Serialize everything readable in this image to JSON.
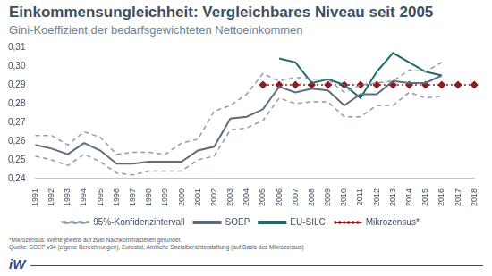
{
  "chart_data": {
    "type": "line",
    "title": "Einkommensungleichheit: Vergleichbares Niveau seit 2005",
    "subtitle": "Gini-Koeffizient der bedarfsgewichteten Nettoeinkommen",
    "notes": [
      "*Mikrozensus: Werte jeweils auf zwei Nachkommastellen gerundet.",
      "Quelle: SOEP v34 (eigene Berechnungen), Eurostat, Amtliche Sozialberichterstattung (auf Basis des Mikrozensus)"
    ],
    "logo": "iW",
    "categories": [
      "1991",
      "1992",
      "1993",
      "1994",
      "1995",
      "1996",
      "1997",
      "1998",
      "1999",
      "2000",
      "2001",
      "2002",
      "2003",
      "2004",
      "2005",
      "2006",
      "2007",
      "2008",
      "2009",
      "2010",
      "2011",
      "2012",
      "2013",
      "2014",
      "2015",
      "2016",
      "2017",
      "2018"
    ],
    "series": [
      {
        "name": "95%-Konfidenzintervall",
        "color": "#8d9bab",
        "line_style": "dashed",
        "upper": [
          0.263,
          0.263,
          0.258,
          0.265,
          0.262,
          0.253,
          0.254,
          0.254,
          0.253,
          0.259,
          0.261,
          0.276,
          0.279,
          0.285,
          0.296,
          0.292,
          0.294,
          0.293,
          0.293,
          0.286,
          0.29,
          0.291,
          0.292,
          0.298,
          0.297,
          0.302,
          null,
          null
        ],
        "lower": [
          0.252,
          0.25,
          0.247,
          0.253,
          0.249,
          0.243,
          0.242,
          0.244,
          0.244,
          0.244,
          0.25,
          0.252,
          0.266,
          0.267,
          0.271,
          0.283,
          0.28,
          0.281,
          0.281,
          0.273,
          0.273,
          0.279,
          0.279,
          0.286,
          0.283,
          0.284,
          null,
          null
        ]
      },
      {
        "name": "SOEP",
        "color": "#5c6d7e",
        "line_style": "solid",
        "values": [
          0.258,
          0.256,
          0.253,
          0.259,
          0.255,
          0.248,
          0.248,
          0.249,
          0.249,
          0.249,
          0.255,
          0.257,
          0.272,
          0.273,
          0.277,
          0.289,
          0.286,
          0.288,
          0.287,
          0.279,
          0.285,
          0.285,
          0.292,
          0.291,
          0.291,
          0.295,
          null,
          null
        ]
      },
      {
        "name": "EU-SILC",
        "color": "#1e6b69",
        "line_style": "solid",
        "values": [
          null,
          null,
          null,
          null,
          null,
          null,
          null,
          null,
          null,
          null,
          null,
          null,
          null,
          null,
          null,
          0.304,
          0.302,
          0.291,
          0.293,
          0.29,
          0.283,
          0.297,
          0.307,
          0.302,
          0.297,
          0.295,
          null,
          null
        ]
      },
      {
        "name": "Mikrozensus*",
        "color": "#8e1b1f",
        "line_style": "dotted",
        "marker": "diamond",
        "values": [
          null,
          null,
          null,
          null,
          null,
          null,
          null,
          null,
          null,
          null,
          null,
          null,
          null,
          null,
          0.29,
          0.29,
          0.29,
          0.29,
          0.29,
          0.29,
          0.29,
          0.29,
          0.29,
          0.29,
          0.29,
          0.29,
          0.29,
          0.29
        ]
      }
    ],
    "ylim": [
      0.24,
      0.31
    ],
    "yticks": [
      {
        "value": 0.24,
        "label": "0,24"
      },
      {
        "value": 0.25,
        "label": "0,25"
      },
      {
        "value": 0.26,
        "label": "0,26"
      },
      {
        "value": 0.27,
        "label": "0,27"
      },
      {
        "value": 0.28,
        "label": "0,28"
      },
      {
        "value": 0.29,
        "label": "0,29"
      },
      {
        "value": 0.3,
        "label": "0,30"
      },
      {
        "value": 0.31,
        "label": "0,31"
      }
    ],
    "grid": false,
    "legend": "bottom"
  }
}
